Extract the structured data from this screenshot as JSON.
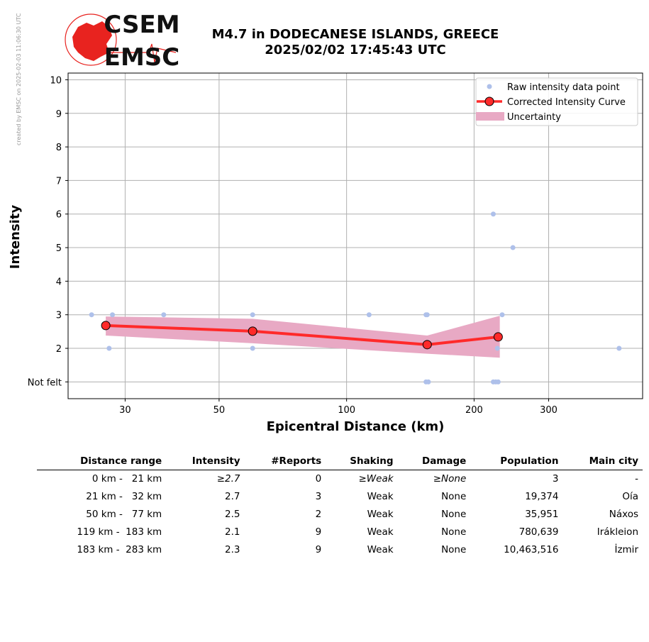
{
  "credit": "created by EMSC on 2025-02-03 11:06:30 UTC",
  "logo": {
    "top_text": "CSEM",
    "bottom_text": "EMSC",
    "color": "#e8231f"
  },
  "title_line1": "M4.7 in DODECANESE ISLANDS, GREECE",
  "title_line2": "2025/02/02 17:45:43 UTC",
  "chart_data": {
    "type": "scatter",
    "xlabel": "Epicentral Distance (km)",
    "ylabel": "Intensity",
    "x_scale": "log",
    "xlim": [
      22,
      500
    ],
    "ylim": [
      0.5,
      10.2
    ],
    "x_ticks": [
      30,
      50,
      100,
      200,
      300
    ],
    "y_ticks": [
      {
        "value": 1,
        "label": "Not felt"
      },
      {
        "value": 2,
        "label": "2"
      },
      {
        "value": 3,
        "label": "3"
      },
      {
        "value": 4,
        "label": "4"
      },
      {
        "value": 5,
        "label": "5"
      },
      {
        "value": 6,
        "label": "6"
      },
      {
        "value": 7,
        "label": "7"
      },
      {
        "value": 8,
        "label": "8"
      },
      {
        "value": 9,
        "label": "9"
      },
      {
        "value": 10,
        "label": "10"
      }
    ],
    "grid": true,
    "legend_position": "top-right",
    "legend": [
      "Raw intensity data point",
      "Corrected Intensity Curve",
      "Uncertainty"
    ],
    "colors": {
      "raw": "#aec0ea",
      "curve": "#ff2a2a",
      "marker_edge": "#000000",
      "band": "#e8a9c4"
    },
    "raw_points": [
      {
        "x": 25,
        "y": 3
      },
      {
        "x": 27.5,
        "y": 2
      },
      {
        "x": 28,
        "y": 3
      },
      {
        "x": 37,
        "y": 3
      },
      {
        "x": 60,
        "y": 3
      },
      {
        "x": 60,
        "y": 2
      },
      {
        "x": 113,
        "y": 3
      },
      {
        "x": 154,
        "y": 3
      },
      {
        "x": 155,
        "y": 3
      },
      {
        "x": 154,
        "y": 1
      },
      {
        "x": 156,
        "y": 1
      },
      {
        "x": 222,
        "y": 6
      },
      {
        "x": 222,
        "y": 1
      },
      {
        "x": 225,
        "y": 1
      },
      {
        "x": 228,
        "y": 1
      },
      {
        "x": 227,
        "y": 2
      },
      {
        "x": 233,
        "y": 3
      },
      {
        "x": 247,
        "y": 5
      },
      {
        "x": 440,
        "y": 2
      }
    ],
    "curve": [
      {
        "x": 27,
        "y": 2.68
      },
      {
        "x": 60,
        "y": 2.51
      },
      {
        "x": 155,
        "y": 2.11
      },
      {
        "x": 228,
        "y": 2.34
      }
    ],
    "uncertainty": {
      "x": [
        27,
        60,
        155,
        230
      ],
      "upper": [
        2.95,
        2.88,
        2.38,
        2.97
      ],
      "lower": [
        2.38,
        2.15,
        1.84,
        1.72
      ]
    }
  },
  "table": {
    "headers": [
      "Distance range",
      "Intensity",
      "#Reports",
      "Shaking",
      "Damage",
      "Population",
      "Main city"
    ],
    "rows": [
      [
        "0 km -   21 km",
        "≥2.7",
        "0",
        "≥Weak",
        "≥None",
        "3",
        "-"
      ],
      [
        "21 km -   32 km",
        "2.7",
        "3",
        "Weak",
        "None",
        "19,374",
        "Oía"
      ],
      [
        "50 km -   77 km",
        "2.5",
        "2",
        "Weak",
        "None",
        "35,951",
        "Náxos"
      ],
      [
        "119 km -  183 km",
        "2.1",
        "9",
        "Weak",
        "None",
        "780,639",
        "Irákleion"
      ],
      [
        "183 km -  283 km",
        "2.3",
        "9",
        "Weak",
        "None",
        "10,463,516",
        "İzmir"
      ]
    ]
  }
}
